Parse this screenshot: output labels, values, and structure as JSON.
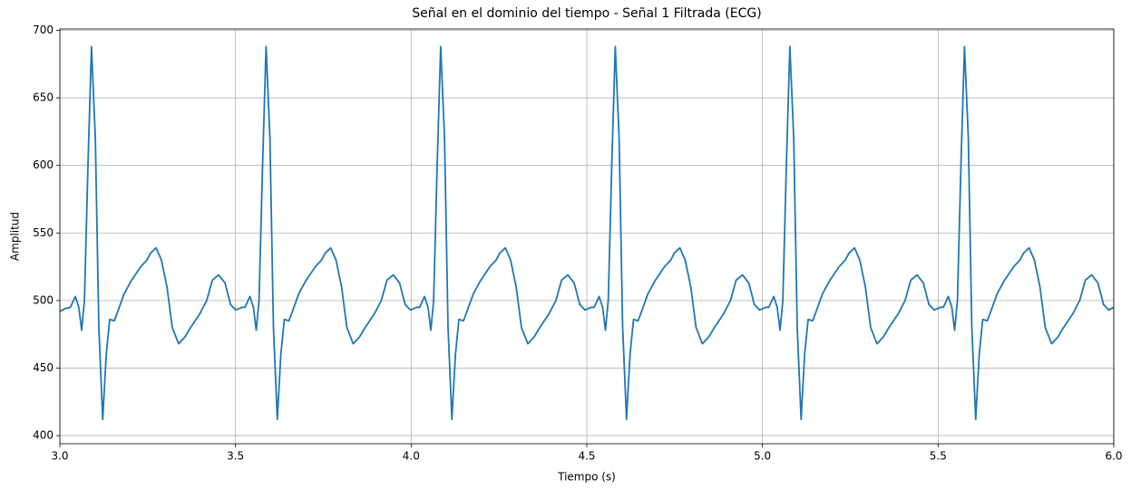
{
  "chart_data": {
    "type": "line",
    "title": "Señal en el dominio del tiempo - Señal 1 Filtrada (ECG)",
    "xlabel": "Tiempo (s)",
    "ylabel": "Amplitud",
    "xlim": [
      3.0,
      6.0
    ],
    "ylim": [
      394,
      701
    ],
    "xticks": [
      {
        "value": 3.0,
        "label": "3.0"
      },
      {
        "value": 3.5,
        "label": "3.5"
      },
      {
        "value": 4.0,
        "label": "4.0"
      },
      {
        "value": 4.5,
        "label": "4.5"
      },
      {
        "value": 5.0,
        "label": "5.0"
      },
      {
        "value": 5.5,
        "label": "5.5"
      },
      {
        "value": 6.0,
        "label": "6.0"
      }
    ],
    "yticks": [
      400,
      450,
      500,
      550,
      600,
      650,
      700
    ],
    "grid": true,
    "x": [
      3.0,
      3.015,
      3.03,
      3.044,
      3.054,
      3.062,
      3.07,
      3.08,
      3.09,
      3.101,
      3.111,
      3.122,
      3.132,
      3.142,
      3.155,
      3.165,
      3.183,
      3.204,
      3.23,
      3.248,
      3.258,
      3.274,
      3.289,
      3.305,
      3.32,
      3.338,
      3.356,
      3.372,
      3.398,
      3.418,
      3.434,
      3.452,
      3.47,
      3.486,
      3.501,
      3.519,
      3.527,
      3.541,
      3.551,
      3.559,
      3.567,
      3.577,
      3.587,
      3.598,
      3.608,
      3.619,
      3.629,
      3.639,
      3.652,
      3.662,
      3.68,
      3.701,
      3.727,
      3.745,
      3.755,
      3.771,
      3.786,
      3.802,
      3.817,
      3.835,
      3.853,
      3.869,
      3.895,
      3.915,
      3.931,
      3.949,
      3.967,
      3.983,
      3.998,
      4.016,
      4.024,
      4.038,
      4.048,
      4.056,
      4.064,
      4.074,
      4.084,
      4.095,
      4.105,
      4.116,
      4.126,
      4.136,
      4.149,
      4.159,
      4.177,
      4.198,
      4.224,
      4.242,
      4.252,
      4.268,
      4.283,
      4.299,
      4.314,
      4.332,
      4.35,
      4.366,
      4.392,
      4.412,
      4.428,
      4.446,
      4.464,
      4.48,
      4.495,
      4.513,
      4.521,
      4.535,
      4.545,
      4.553,
      4.561,
      4.571,
      4.581,
      4.592,
      4.602,
      4.613,
      4.623,
      4.633,
      4.646,
      4.656,
      4.674,
      4.695,
      4.721,
      4.739,
      4.749,
      4.765,
      4.78,
      4.796,
      4.811,
      4.829,
      4.847,
      4.863,
      4.889,
      4.909,
      4.925,
      4.943,
      4.961,
      4.977,
      4.992,
      5.01,
      5.018,
      5.032,
      5.042,
      5.05,
      5.058,
      5.068,
      5.078,
      5.089,
      5.099,
      5.11,
      5.12,
      5.13,
      5.143,
      5.153,
      5.171,
      5.192,
      5.218,
      5.236,
      5.246,
      5.262,
      5.277,
      5.293,
      5.308,
      5.326,
      5.344,
      5.36,
      5.386,
      5.406,
      5.422,
      5.44,
      5.458,
      5.474,
      5.489,
      5.507,
      5.515,
      5.529,
      5.539,
      5.547,
      5.555,
      5.565,
      5.575,
      5.586,
      5.596,
      5.607,
      5.617,
      5.627,
      5.64,
      5.65,
      5.668,
      5.689,
      5.715,
      5.733,
      5.743,
      5.759,
      5.774,
      5.79,
      5.805,
      5.823,
      5.841,
      5.857,
      5.883,
      5.903,
      5.919,
      5.937,
      5.955,
      5.971,
      5.986,
      6.0
    ],
    "series": [
      {
        "color": "#1f77b4",
        "values": [
          492,
          494,
          495,
          503,
          495,
          478,
          500,
          600,
          688,
          620,
          480,
          412,
          460,
          486,
          485,
          492,
          505,
          515,
          525,
          530,
          535,
          539,
          530,
          510,
          480,
          468,
          473,
          480,
          490,
          500,
          515,
          519,
          513,
          497,
          493,
          495,
          495,
          503,
          495,
          478,
          500,
          600,
          688,
          620,
          480,
          412,
          460,
          486,
          485,
          492,
          505,
          515,
          525,
          530,
          535,
          539,
          530,
          510,
          480,
          468,
          473,
          480,
          490,
          500,
          515,
          519,
          513,
          497,
          493,
          495,
          495,
          503,
          495,
          478,
          500,
          600,
          688,
          620,
          480,
          412,
          460,
          486,
          485,
          492,
          505,
          515,
          525,
          530,
          535,
          539,
          530,
          510,
          480,
          468,
          473,
          480,
          490,
          500,
          515,
          519,
          513,
          497,
          493,
          495,
          495,
          503,
          495,
          478,
          500,
          600,
          688,
          620,
          480,
          412,
          460,
          486,
          485,
          492,
          505,
          515,
          525,
          530,
          535,
          539,
          530,
          510,
          480,
          468,
          473,
          480,
          490,
          500,
          515,
          519,
          513,
          497,
          493,
          495,
          495,
          503,
          495,
          478,
          500,
          600,
          688,
          620,
          480,
          412,
          460,
          486,
          485,
          492,
          505,
          515,
          525,
          530,
          535,
          539,
          530,
          510,
          480,
          468,
          473,
          480,
          490,
          500,
          515,
          519,
          513,
          497,
          493,
          495,
          495,
          503,
          495,
          478,
          500,
          600,
          688,
          620,
          480,
          412,
          460,
          486,
          485,
          492,
          505,
          515,
          525,
          530,
          535,
          539,
          530,
          510,
          480,
          468,
          473,
          480,
          490,
          500,
          515,
          519,
          513,
          497,
          493,
          495
        ]
      }
    ]
  }
}
